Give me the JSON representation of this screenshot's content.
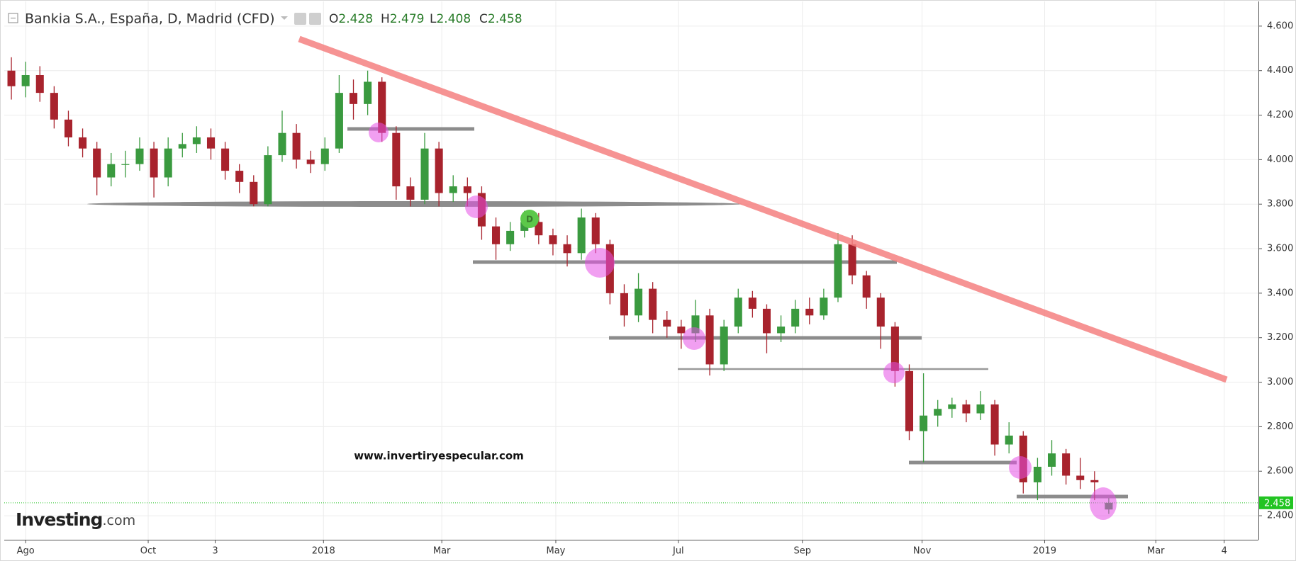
{
  "chart_data": {
    "type": "candlestick",
    "title": "Bankia S.A., España, D, Madrid (CFD)",
    "ohlc_labels": [
      "O",
      "H",
      "L",
      "C"
    ],
    "watermark": "www.invertiryespecular.com",
    "logo": "Investing",
    "logo_suffix": ".com",
    "up_color": "#3a9a3f",
    "down_color": "#a8232d",
    "last_price_color": "#22c422",
    "open": [
      4.4,
      4.33,
      4.38,
      4.3,
      4.18,
      4.1,
      4.05,
      3.92,
      3.98,
      3.98,
      4.05,
      3.92,
      4.05,
      4.07,
      4.1,
      4.05,
      3.95,
      3.9,
      3.8,
      4.02,
      4.12,
      4.0,
      3.98,
      4.05,
      4.3,
      4.25,
      4.35,
      4.12,
      3.88,
      3.82,
      4.05,
      3.85,
      3.88,
      3.85,
      3.7,
      3.62,
      3.68,
      3.72,
      3.66,
      3.62,
      3.58,
      3.74,
      3.62,
      3.4,
      3.3,
      3.42,
      3.28,
      3.25,
      3.22,
      3.3,
      3.08,
      3.25,
      3.38,
      3.33,
      3.22,
      3.25,
      3.33,
      3.3,
      3.38,
      3.62,
      3.48,
      3.38,
      3.25,
      3.05,
      2.78,
      2.85,
      2.88,
      2.9,
      2.86,
      2.9,
      2.72,
      2.76,
      2.55,
      2.62,
      2.68,
      2.58,
      2.56,
      2.428
    ],
    "high": [
      4.46,
      4.44,
      4.42,
      4.33,
      4.22,
      4.14,
      4.08,
      4.03,
      4.04,
      4.1,
      4.08,
      4.1,
      4.12,
      4.15,
      4.14,
      4.08,
      3.98,
      3.93,
      4.06,
      4.22,
      4.16,
      4.04,
      4.1,
      4.38,
      4.36,
      4.4,
      4.37,
      4.15,
      3.92,
      4.12,
      4.08,
      3.93,
      3.92,
      3.88,
      3.74,
      3.72,
      3.77,
      3.76,
      3.69,
      3.66,
      3.78,
      3.76,
      3.64,
      3.44,
      3.49,
      3.45,
      3.32,
      3.28,
      3.37,
      3.33,
      3.28,
      3.42,
      3.41,
      3.35,
      3.3,
      3.37,
      3.38,
      3.42,
      3.67,
      3.66,
      3.5,
      3.4,
      3.27,
      3.08,
      3.04,
      2.92,
      2.93,
      2.92,
      2.96,
      2.92,
      2.82,
      2.78,
      2.66,
      2.74,
      2.7,
      2.66,
      2.6,
      2.479
    ],
    "low": [
      4.27,
      4.28,
      4.26,
      4.14,
      4.06,
      4.01,
      3.84,
      3.88,
      3.92,
      3.95,
      3.83,
      3.88,
      4.01,
      4.03,
      4.0,
      3.91,
      3.85,
      3.79,
      3.79,
      3.99,
      3.96,
      3.94,
      3.95,
      4.03,
      4.18,
      4.2,
      4.08,
      3.82,
      3.79,
      3.8,
      3.79,
      3.81,
      3.79,
      3.64,
      3.55,
      3.59,
      3.65,
      3.62,
      3.57,
      3.52,
      3.55,
      3.58,
      3.35,
      3.25,
      3.27,
      3.22,
      3.2,
      3.15,
      3.18,
      3.03,
      3.05,
      3.22,
      3.29,
      3.13,
      3.18,
      3.22,
      3.26,
      3.28,
      3.36,
      3.44,
      3.33,
      3.15,
      2.98,
      2.74,
      2.64,
      2.8,
      2.84,
      2.82,
      2.83,
      2.67,
      2.68,
      2.5,
      2.47,
      2.58,
      2.54,
      2.52,
      2.47,
      2.408
    ],
    "close": [
      4.33,
      4.38,
      4.3,
      4.18,
      4.1,
      4.05,
      3.92,
      3.98,
      3.98,
      4.05,
      3.92,
      4.05,
      4.07,
      4.1,
      4.05,
      3.95,
      3.9,
      3.8,
      4.02,
      4.12,
      4.0,
      3.98,
      4.05,
      4.3,
      4.25,
      4.35,
      4.12,
      3.88,
      3.82,
      4.05,
      3.85,
      3.88,
      3.85,
      3.7,
      3.62,
      3.68,
      3.72,
      3.66,
      3.62,
      3.58,
      3.74,
      3.62,
      3.4,
      3.3,
      3.42,
      3.28,
      3.25,
      3.22,
      3.3,
      3.08,
      3.25,
      3.38,
      3.33,
      3.22,
      3.25,
      3.33,
      3.3,
      3.38,
      3.62,
      3.48,
      3.38,
      3.25,
      3.05,
      2.78,
      2.85,
      2.88,
      2.9,
      2.86,
      2.9,
      2.72,
      2.76,
      2.55,
      2.62,
      2.68,
      2.58,
      2.56,
      2.55,
      2.458
    ],
    "xlim": [
      -0.5,
      87.5
    ],
    "xticks": [
      {
        "value": 1.0,
        "label": "Ago"
      },
      {
        "value": 9.6,
        "label": "Oct"
      },
      {
        "value": 14.3,
        "label": "3"
      },
      {
        "value": 21.9,
        "label": "2018"
      },
      {
        "value": 30.2,
        "label": "Mar"
      },
      {
        "value": 38.2,
        "label": "May"
      },
      {
        "value": 46.8,
        "label": "Jul"
      },
      {
        "value": 55.5,
        "label": "Sep"
      },
      {
        "value": 63.9,
        "label": "Nov"
      },
      {
        "value": 72.5,
        "label": "2019"
      },
      {
        "value": 80.3,
        "label": "Mar"
      },
      {
        "value": 85.1,
        "label": "4"
      }
    ],
    "ylim": [
      2.292,
      4.711
    ],
    "yticks": [
      {
        "value": 2.4,
        "label": "2.400"
      },
      {
        "value": 2.6,
        "label": "2.600"
      },
      {
        "value": 2.8,
        "label": "2.800"
      },
      {
        "value": 3.0,
        "label": "3.000"
      },
      {
        "value": 3.2,
        "label": "3.200"
      },
      {
        "value": 3.4,
        "label": "3.400"
      },
      {
        "value": 3.6,
        "label": "3.600"
      },
      {
        "value": 3.8,
        "label": "3.800"
      },
      {
        "value": 4.0,
        "label": "4.000"
      },
      {
        "value": 4.2,
        "label": "4.200"
      },
      {
        "value": 4.4,
        "label": "4.400"
      },
      {
        "value": 4.6,
        "label": "4.600"
      }
    ]
  }
}
